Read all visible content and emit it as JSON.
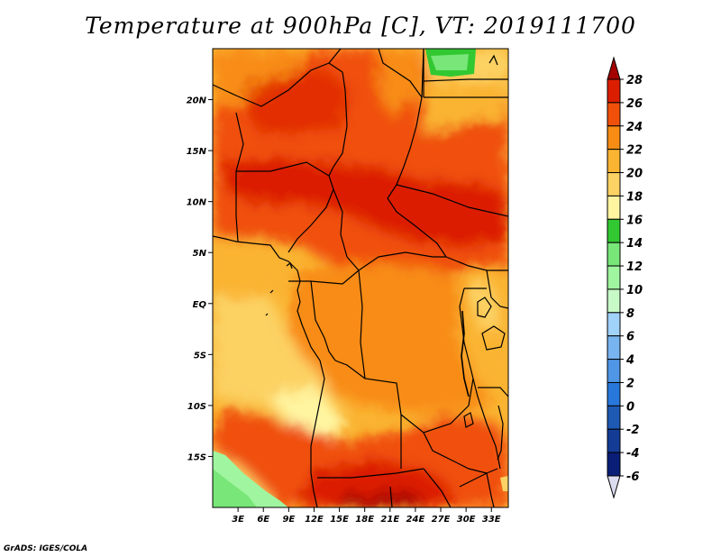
{
  "title": "Temperature at 900hPa [C], VT: 2019111700",
  "credit": "GrADS: IGES/COLA",
  "map": {
    "lon_range": [
      0,
      35
    ],
    "lat_range": [
      -20,
      25
    ],
    "x_ticks": [
      {
        "lon": 3,
        "label": "3E"
      },
      {
        "lon": 6,
        "label": "6E"
      },
      {
        "lon": 9,
        "label": "9E"
      },
      {
        "lon": 12,
        "label": "12E"
      },
      {
        "lon": 15,
        "label": "15E"
      },
      {
        "lon": 18,
        "label": "18E"
      },
      {
        "lon": 21,
        "label": "21E"
      },
      {
        "lon": 24,
        "label": "24E"
      },
      {
        "lon": 27,
        "label": "27E"
      },
      {
        "lon": 30,
        "label": "30E"
      },
      {
        "lon": 33,
        "label": "33E"
      }
    ],
    "y_ticks": [
      {
        "lat": 20,
        "label": "20N"
      },
      {
        "lat": 15,
        "label": "15N"
      },
      {
        "lat": 10,
        "label": "10N"
      },
      {
        "lat": 5,
        "label": "5N"
      },
      {
        "lat": 0,
        "label": "EQ"
      },
      {
        "lat": -5,
        "label": "5S"
      },
      {
        "lat": -10,
        "label": "10S"
      },
      {
        "lat": -15,
        "label": "15S"
      }
    ]
  },
  "colorbar": {
    "levels": [
      "28",
      "26",
      "24",
      "22",
      "20",
      "18",
      "16",
      "14",
      "12",
      "10",
      "8",
      "6",
      "4",
      "2",
      "0",
      "-2",
      "-4",
      "-6"
    ],
    "colors": [
      "#a50000",
      "#dc1e00",
      "#f0500a",
      "#f88c14",
      "#fab432",
      "#fcd264",
      "#fff5a0",
      "#32c832",
      "#78e678",
      "#a0f5a0",
      "#c8fac8",
      "#a0d2fa",
      "#78b4f0",
      "#5096e6",
      "#2878dc",
      "#1e5ab4",
      "#143c96",
      "#0a1e78",
      "#dcdcf0"
    ]
  }
}
